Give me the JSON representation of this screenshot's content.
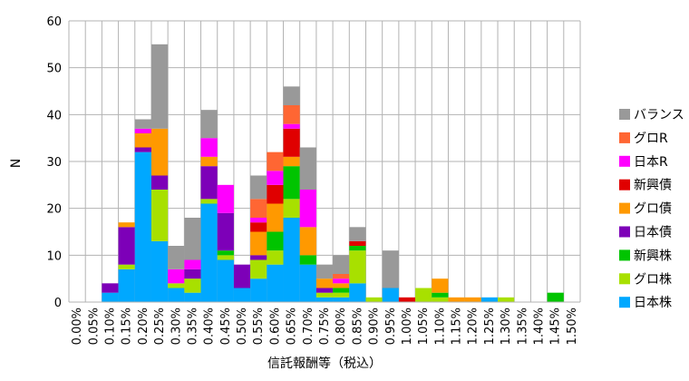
{
  "chart_data": {
    "type": "bar",
    "stacked": true,
    "xlabel": "信託報酬等（税込）",
    "ylabel": "N",
    "ylim": [
      0,
      60
    ],
    "yticks": [
      0,
      10,
      20,
      30,
      40,
      50,
      60
    ],
    "grid": true,
    "legend_position": "right",
    "categories": [
      "0.00%",
      "0.05%",
      "0.10%",
      "0.15%",
      "0.20%",
      "0.25%",
      "0.30%",
      "0.35%",
      "0.40%",
      "0.45%",
      "0.50%",
      "0.55%",
      "0.60%",
      "0.65%",
      "0.70%",
      "0.75%",
      "0.80%",
      "0.85%",
      "0.90%",
      "0.95%",
      "1.00%",
      "1.05%",
      "1.10%",
      "1.15%",
      "1.20%",
      "1.25%",
      "1.30%",
      "1.35%",
      "1.40%",
      "1.45%",
      "1.50%"
    ],
    "series": [
      {
        "name": "日本株",
        "color": "#00a8ff",
        "values": [
          0,
          0,
          2,
          7,
          32,
          13,
          3,
          2,
          21,
          9,
          3,
          5,
          8,
          18,
          8,
          1,
          1,
          4,
          0,
          3,
          0,
          0,
          0,
          0,
          0,
          1,
          0,
          0,
          0,
          0,
          0
        ]
      },
      {
        "name": "グロ株",
        "color": "#a8e000",
        "values": [
          0,
          0,
          0,
          1,
          0,
          11,
          1,
          3,
          1,
          1,
          0,
          4,
          3,
          4,
          0,
          1,
          1,
          7,
          1,
          0,
          0,
          3,
          1,
          0,
          0,
          0,
          1,
          0,
          0,
          0,
          0
        ]
      },
      {
        "name": "新興株",
        "color": "#00c400",
        "values": [
          0,
          0,
          0,
          0,
          0,
          0,
          0,
          0,
          0,
          1,
          0,
          0,
          4,
          7,
          2,
          0,
          1,
          1,
          0,
          0,
          0,
          0,
          1,
          0,
          0,
          0,
          0,
          0,
          0,
          2,
          0
        ]
      },
      {
        "name": "日本債",
        "color": "#7d00b8",
        "values": [
          0,
          0,
          2,
          8,
          1,
          3,
          0,
          2,
          7,
          8,
          5,
          1,
          0,
          0,
          0,
          1,
          0,
          0,
          0,
          0,
          0,
          0,
          0,
          0,
          0,
          0,
          0,
          0,
          0,
          0,
          0
        ]
      },
      {
        "name": "グロ債",
        "color": "#ff9900",
        "values": [
          0,
          0,
          0,
          1,
          3,
          10,
          0,
          0,
          2,
          0,
          0,
          5,
          6,
          2,
          6,
          2,
          1,
          0,
          0,
          0,
          0,
          0,
          3,
          1,
          1,
          0,
          0,
          0,
          0,
          0,
          0
        ]
      },
      {
        "name": "新興債",
        "color": "#e00000",
        "values": [
          0,
          0,
          0,
          0,
          0,
          0,
          0,
          0,
          0,
          0,
          0,
          2,
          4,
          6,
          0,
          0,
          0,
          1,
          0,
          0,
          1,
          0,
          0,
          0,
          0,
          0,
          0,
          0,
          0,
          0,
          0
        ]
      },
      {
        "name": "日本R",
        "color": "#ff00ff",
        "values": [
          0,
          0,
          0,
          0,
          1,
          0,
          3,
          2,
          4,
          6,
          0,
          1,
          3,
          1,
          8,
          0,
          1,
          0,
          0,
          0,
          0,
          0,
          0,
          0,
          0,
          0,
          0,
          0,
          0,
          0,
          0
        ]
      },
      {
        "name": "グロR",
        "color": "#ff6633",
        "values": [
          0,
          0,
          0,
          0,
          0,
          0,
          0,
          0,
          0,
          0,
          0,
          4,
          4,
          4,
          0,
          0,
          1,
          0,
          0,
          0,
          0,
          0,
          0,
          0,
          0,
          0,
          0,
          0,
          0,
          0,
          0
        ]
      },
      {
        "name": "バランス",
        "color": "#999999",
        "values": [
          0,
          0,
          0,
          0,
          2,
          18,
          5,
          9,
          6,
          0,
          0,
          5,
          0,
          4,
          9,
          3,
          4,
          3,
          0,
          8,
          0,
          0,
          0,
          0,
          0,
          0,
          0,
          0,
          0,
          0,
          0
        ]
      }
    ],
    "legend_order": [
      "バランス",
      "グロR",
      "日本R",
      "新興債",
      "グロ債",
      "日本債",
      "新興株",
      "グロ株",
      "日本株"
    ]
  }
}
